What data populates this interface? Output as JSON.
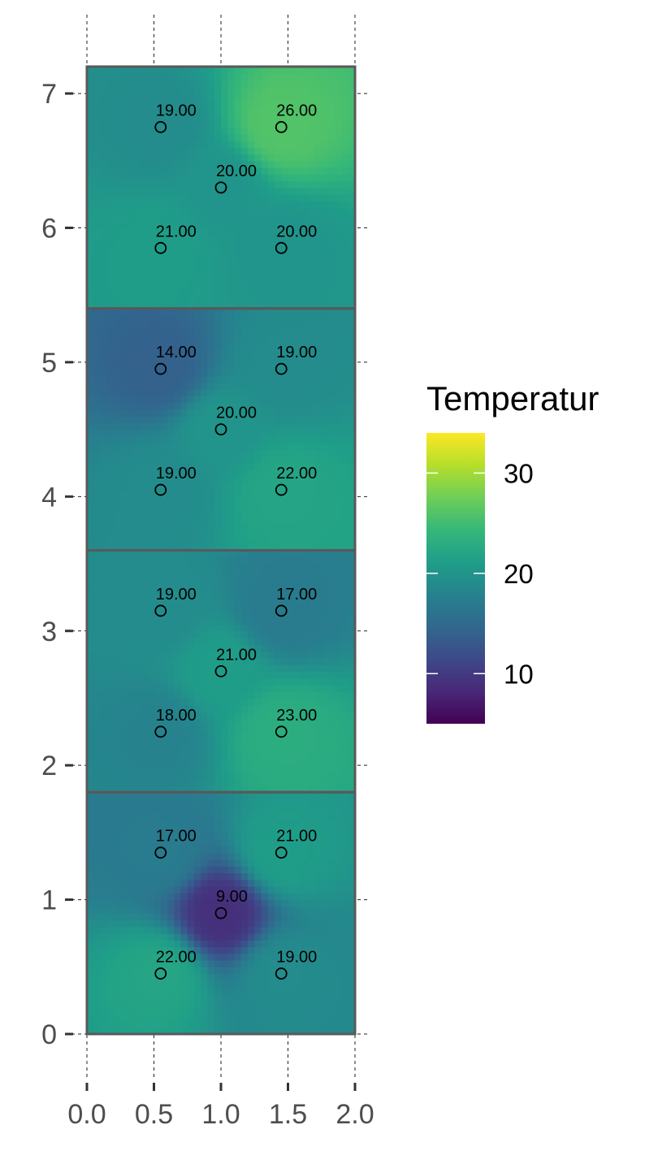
{
  "chart_data": {
    "type": "heatmap",
    "title": "",
    "xlabel": "",
    "ylabel": "",
    "xlim": [
      0,
      2
    ],
    "ylim": [
      0,
      7.2
    ],
    "x_ticks": [
      "0.0",
      "0.5",
      "1.0",
      "1.5",
      "2.0"
    ],
    "y_ticks": [
      "0",
      "1",
      "2",
      "3",
      "4",
      "5",
      "6",
      "7"
    ],
    "grid": "dashed vertical and horizontal tick lines",
    "panels": [
      {
        "ymin": 0.0,
        "ymax": 1.8
      },
      {
        "ymin": 1.8,
        "ymax": 3.6
      },
      {
        "ymin": 3.6,
        "ymax": 5.4
      },
      {
        "ymin": 5.4,
        "ymax": 7.2
      }
    ],
    "points": [
      {
        "x": 0.55,
        "y": 0.45,
        "value": 22,
        "label": "22.00"
      },
      {
        "x": 1.45,
        "y": 0.45,
        "value": 19,
        "label": "19.00"
      },
      {
        "x": 1.0,
        "y": 0.9,
        "value": 9,
        "label": "9.00"
      },
      {
        "x": 0.55,
        "y": 1.35,
        "value": 17,
        "label": "17.00"
      },
      {
        "x": 1.45,
        "y": 1.35,
        "value": 21,
        "label": "21.00"
      },
      {
        "x": 0.55,
        "y": 2.25,
        "value": 18,
        "label": "18.00"
      },
      {
        "x": 1.45,
        "y": 2.25,
        "value": 23,
        "label": "23.00"
      },
      {
        "x": 1.0,
        "y": 2.7,
        "value": 21,
        "label": "21.00"
      },
      {
        "x": 0.55,
        "y": 3.15,
        "value": 19,
        "label": "19.00"
      },
      {
        "x": 1.45,
        "y": 3.15,
        "value": 17,
        "label": "17.00"
      },
      {
        "x": 0.55,
        "y": 4.05,
        "value": 19,
        "label": "19.00"
      },
      {
        "x": 1.45,
        "y": 4.05,
        "value": 22,
        "label": "22.00"
      },
      {
        "x": 1.0,
        "y": 4.5,
        "value": 20,
        "label": "20.00"
      },
      {
        "x": 0.55,
        "y": 4.95,
        "value": 14,
        "label": "14.00"
      },
      {
        "x": 1.45,
        "y": 4.95,
        "value": 19,
        "label": "19.00"
      },
      {
        "x": 0.55,
        "y": 5.85,
        "value": 21,
        "label": "21.00"
      },
      {
        "x": 1.45,
        "y": 5.85,
        "value": 20,
        "label": "20.00"
      },
      {
        "x": 1.0,
        "y": 6.3,
        "value": 20,
        "label": "20.00"
      },
      {
        "x": 0.55,
        "y": 6.75,
        "value": 19,
        "label": "19.00"
      },
      {
        "x": 1.45,
        "y": 6.75,
        "value": 26,
        "label": "26.00"
      }
    ],
    "legend": {
      "title": "Temperatur",
      "placement": "right",
      "min": 5,
      "max": 34,
      "ticks": [
        {
          "value": 10,
          "label": "10"
        },
        {
          "value": 20,
          "label": "20"
        },
        {
          "value": 30,
          "label": "30"
        }
      ],
      "colormap": "viridis",
      "stops": [
        "#440154",
        "#482878",
        "#3e4989",
        "#31688e",
        "#26828e",
        "#1f9e89",
        "#35b779",
        "#6ece58",
        "#b5de2b",
        "#fde725"
      ]
    },
    "colors": {
      "panel_border": "#595959",
      "tick": "#333333",
      "tick_label": "#4d4d4d"
    }
  }
}
